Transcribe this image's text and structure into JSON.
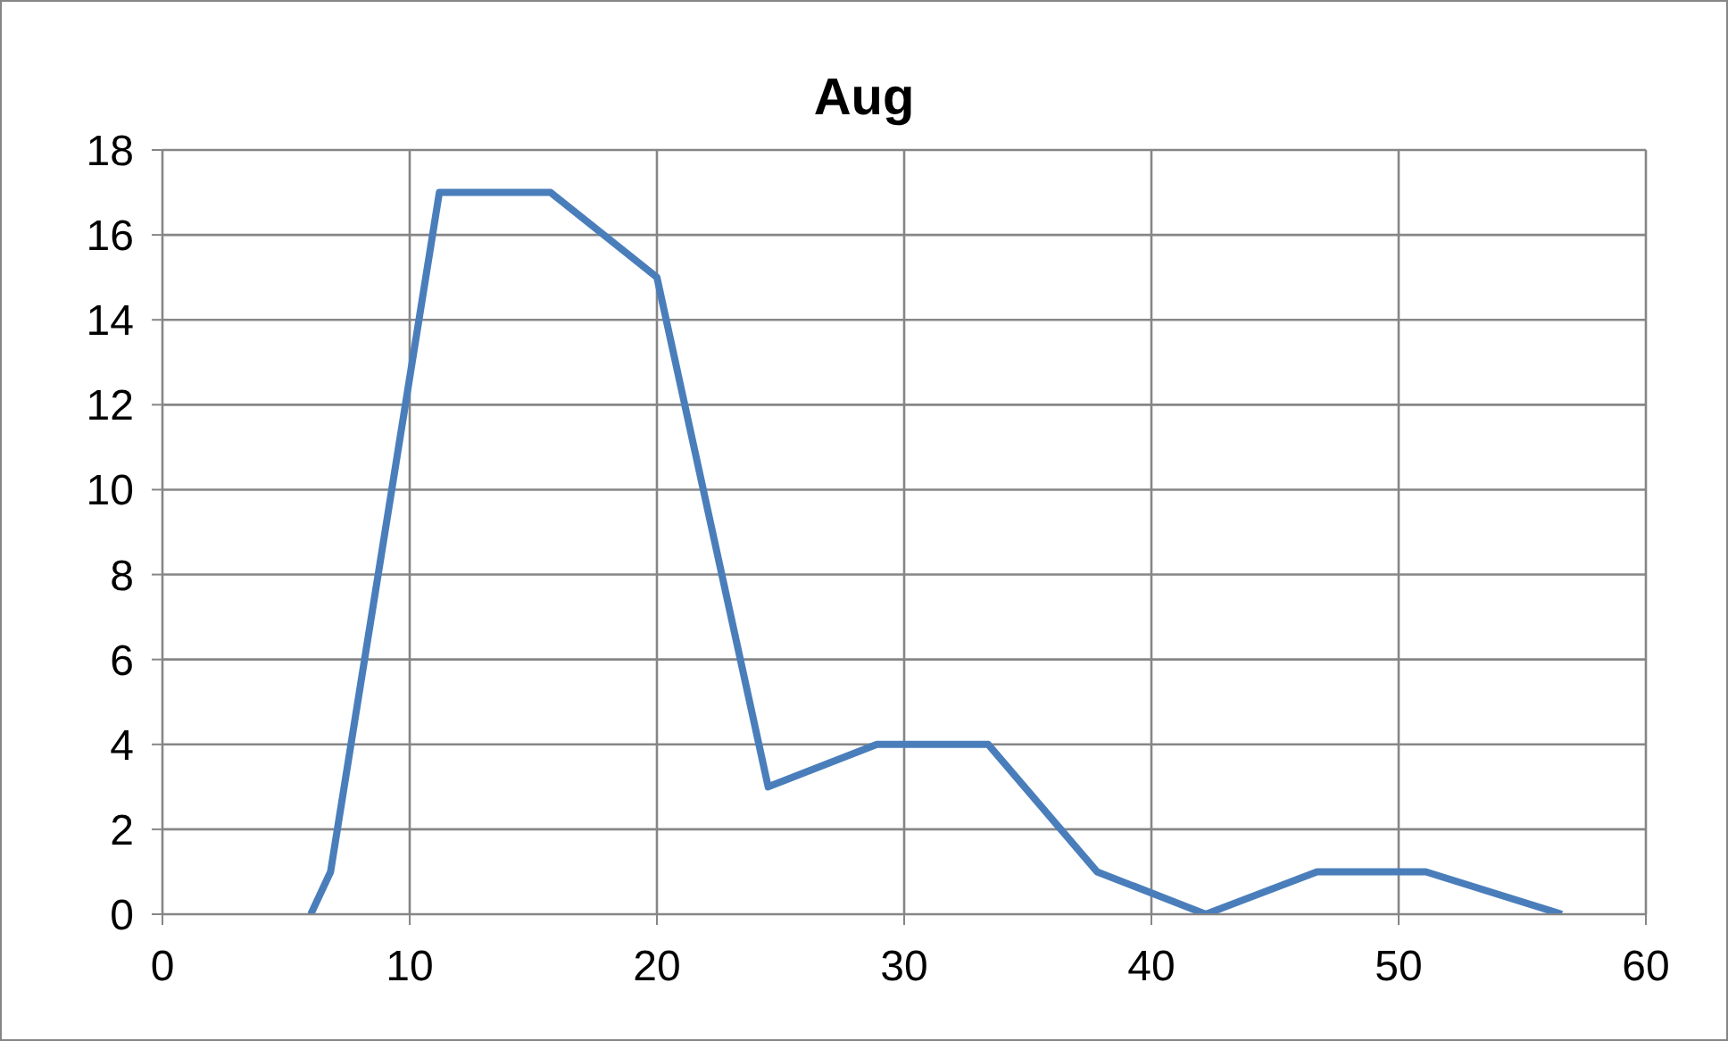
{
  "chart_data": {
    "type": "line",
    "title": "Aug",
    "x": [
      6,
      6.8,
      11.2,
      15.7,
      20,
      24.5,
      28.9,
      33.4,
      37.8,
      42.2,
      46.7,
      51.1,
      56.6
    ],
    "series": [
      {
        "color": "#4a7ebb",
        "values": [
          0,
          1,
          17,
          17,
          15,
          3,
          4,
          4,
          1,
          0,
          1,
          1,
          0
        ]
      }
    ],
    "xlim": [
      0,
      60
    ],
    "xticks": [
      0,
      10,
      20,
      30,
      40,
      50,
      60
    ],
    "ylim": [
      0,
      18
    ],
    "yticks": [
      0,
      2,
      4,
      6,
      8,
      10,
      12,
      14,
      16,
      18
    ],
    "grid": true,
    "marker": "none",
    "line_style": "solid"
  }
}
